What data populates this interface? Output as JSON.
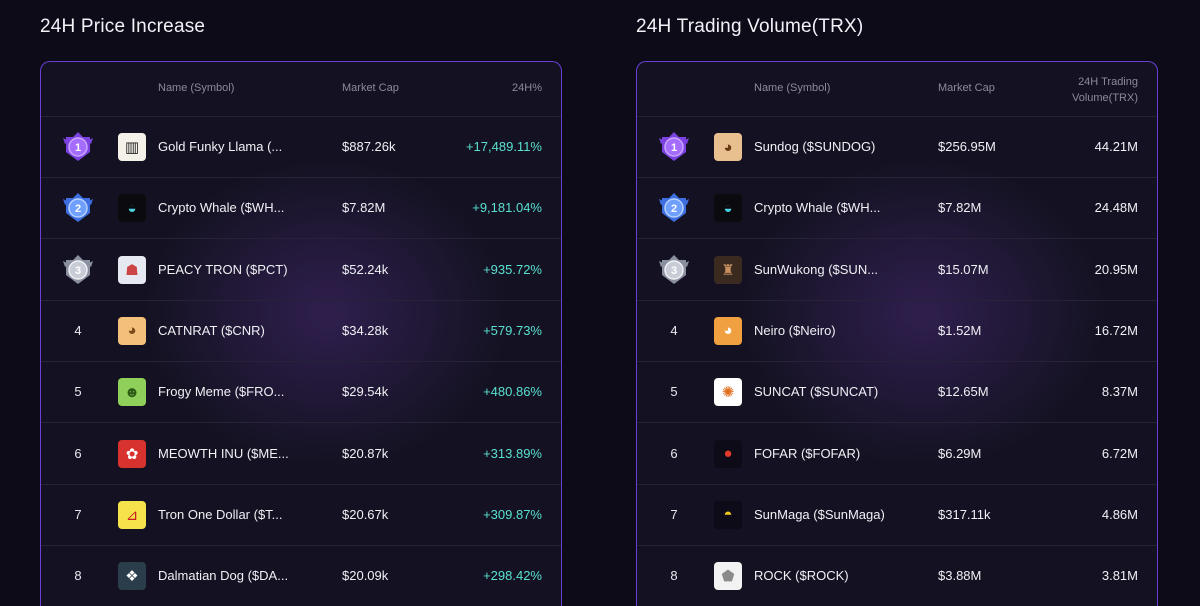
{
  "price_section": {
    "title": "24H Price Increase",
    "headers": {
      "name": "Name (Symbol)",
      "market_cap": "Market Cap",
      "change": "24H%"
    },
    "rows": [
      {
        "rank": "1",
        "icon": "llama-icon",
        "name": "Gold Funky Llama (...",
        "market_cap": "$887.26k",
        "change": "+17,489.11%"
      },
      {
        "rank": "2",
        "icon": "whale-icon",
        "name": "Crypto Whale ($WH...",
        "market_cap": "$7.82M",
        "change": "+9,181.04%"
      },
      {
        "rank": "3",
        "icon": "robot-icon",
        "name": "PEACY TRON ($PCT)",
        "market_cap": "$52.24k",
        "change": "+935.72%"
      },
      {
        "rank": "4",
        "icon": "cat-icon",
        "name": "CATNRAT ($CNR)",
        "market_cap": "$34.28k",
        "change": "+579.73%"
      },
      {
        "rank": "5",
        "icon": "frog-icon",
        "name": "Frogy Meme ($FRO...",
        "market_cap": "$29.54k",
        "change": "+480.86%"
      },
      {
        "rank": "6",
        "icon": "meowth-icon",
        "name": "MEOWTH INU ($ME...",
        "market_cap": "$20.87k",
        "change": "+313.89%"
      },
      {
        "rank": "7",
        "icon": "tron-dollar-icon",
        "name": "Tron One Dollar ($T...",
        "market_cap": "$20.67k",
        "change": "+309.87%"
      },
      {
        "rank": "8",
        "icon": "dalmatian-icon",
        "name": "Dalmatian Dog ($DA...",
        "market_cap": "$20.09k",
        "change": "+298.42%"
      }
    ]
  },
  "volume_section": {
    "title": "24H Trading Volume(TRX)",
    "headers": {
      "name": "Name (Symbol)",
      "market_cap": "Market Cap",
      "volume_line1": "24H Trading",
      "volume_line2": "Volume(TRX)"
    },
    "rows": [
      {
        "rank": "1",
        "icon": "dog-icon",
        "name": "Sundog ($SUNDOG)",
        "market_cap": "$256.95M",
        "volume": "44.21M"
      },
      {
        "rank": "2",
        "icon": "whale-icon",
        "name": "Crypto Whale ($WH...",
        "market_cap": "$7.82M",
        "volume": "24.48M"
      },
      {
        "rank": "3",
        "icon": "wukong-icon",
        "name": "SunWukong ($SUN...",
        "market_cap": "$15.07M",
        "volume": "20.95M"
      },
      {
        "rank": "4",
        "icon": "shiba-icon",
        "name": "Neiro ($Neiro)",
        "market_cap": "$1.52M",
        "volume": "16.72M"
      },
      {
        "rank": "5",
        "icon": "suncat-icon",
        "name": "SUNCAT ($SUNCAT)",
        "market_cap": "$12.65M",
        "volume": "8.37M"
      },
      {
        "rank": "6",
        "icon": "pepe-icon",
        "name": "FOFAR ($FOFAR)",
        "market_cap": "$6.29M",
        "volume": "6.72M"
      },
      {
        "rank": "7",
        "icon": "cap-icon",
        "name": "SunMaga ($SunMaga)",
        "market_cap": "$317.11k",
        "volume": "4.86M"
      },
      {
        "rank": "8",
        "icon": "rock-icon",
        "name": "ROCK ($ROCK)",
        "market_cap": "$3.88M",
        "volume": "3.81M"
      }
    ]
  },
  "colors": {
    "positive_change": "#59e0d0",
    "panel_border": "#6b3fd6",
    "medal_gold_purple": "#8a4ee8",
    "medal_silver_blue": "#4a7fe8",
    "medal_bronze_gray": "#9aa0b0"
  }
}
